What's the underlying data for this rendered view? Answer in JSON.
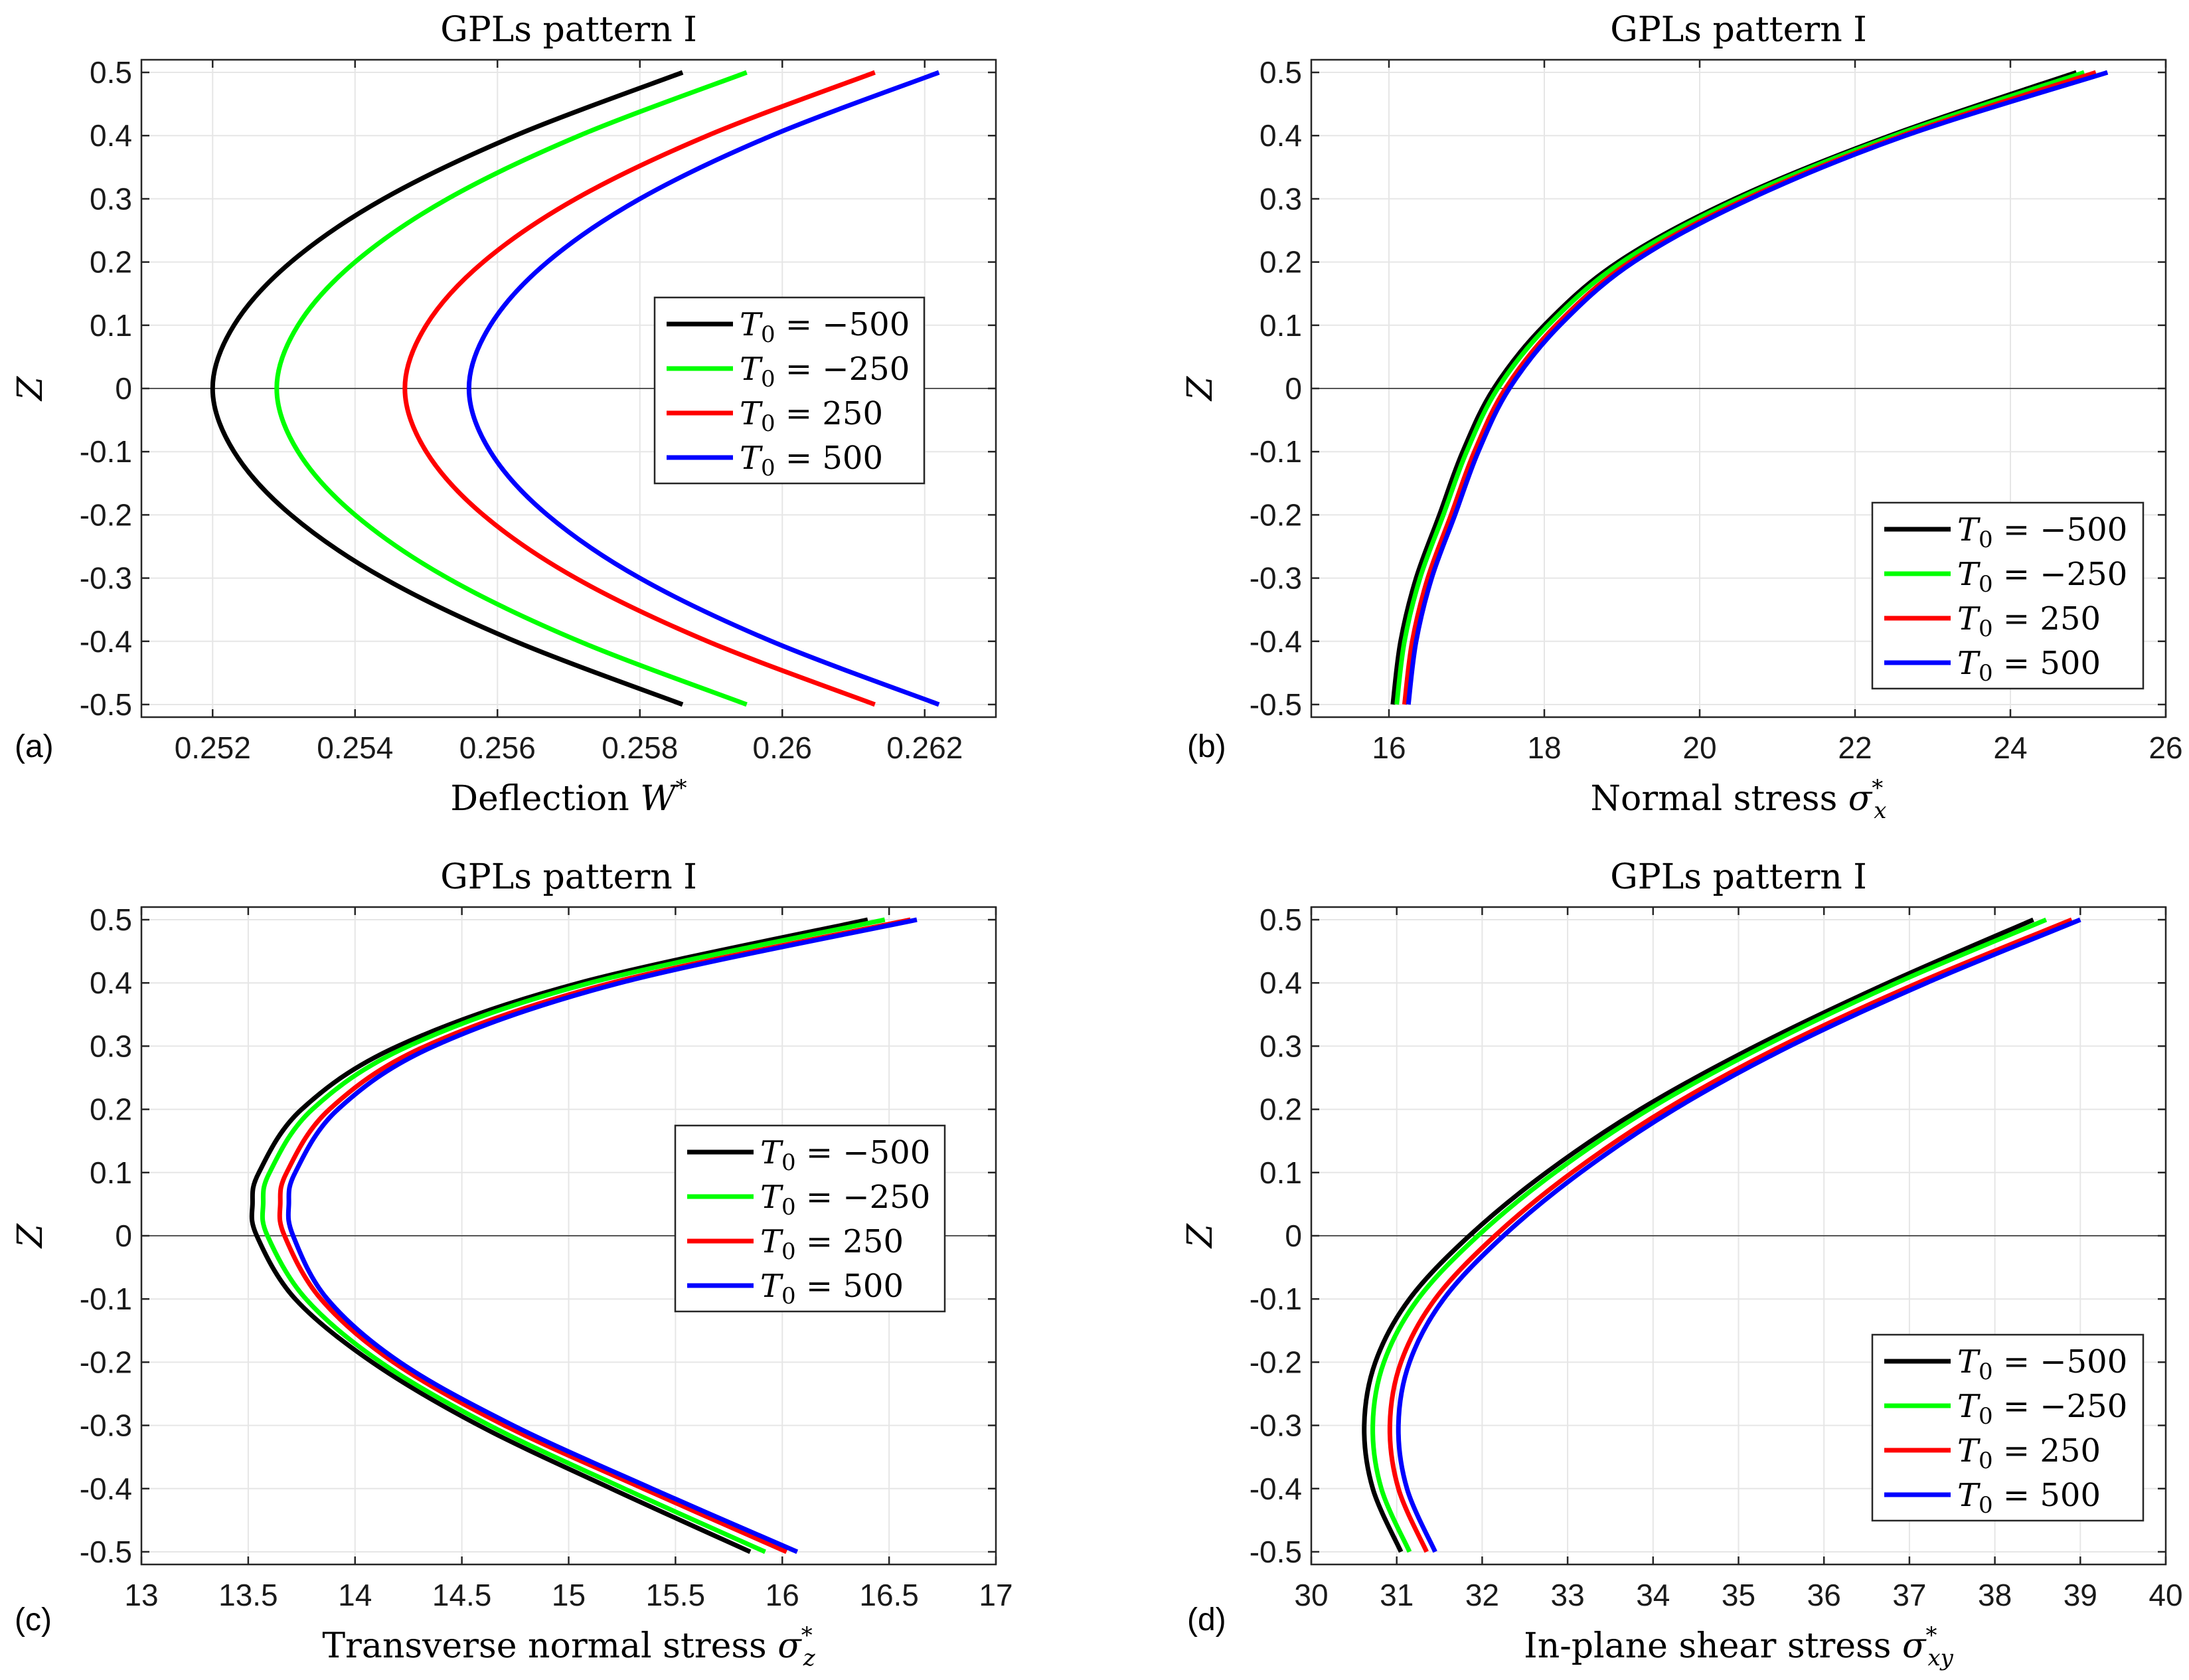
{
  "chart_data": [
    {
      "type": "line",
      "panel": "(a)",
      "title": "GPLs pattern I",
      "xlabel": "Deflection W*",
      "ylabel": "Z",
      "xlim": [
        0.251,
        0.263
      ],
      "ylim": [
        -0.52,
        0.52
      ],
      "xticks": [
        0.252,
        0.254,
        0.256,
        0.258,
        0.26,
        0.262
      ],
      "xtick_labels": [
        "0.252",
        "0.254",
        "0.256",
        "0.258",
        "0.26",
        "0.262"
      ],
      "yticks": [
        0.5,
        0.4,
        0.3,
        0.2,
        0.1,
        0,
        -0.1,
        -0.2,
        -0.3,
        -0.4,
        -0.5
      ],
      "ytick_labels": [
        "0.5",
        "0.4",
        "0.3",
        "0.2",
        "0.1",
        "0",
        "-0.1",
        "-0.2",
        "-0.3",
        "-0.4",
        "-0.5"
      ],
      "grid": true,
      "zero_line": true,
      "legend_position": "center-right",
      "z": [
        -0.5,
        -0.4,
        -0.3,
        -0.2,
        -0.1,
        0,
        0.1,
        0.2,
        0.3,
        0.4,
        0.5
      ],
      "series": [
        {
          "name": "T0 = -500",
          "color": "#000000",
          "values": [
            0.2586,
            0.25625,
            0.2544,
            0.2531,
            0.2523,
            0.252,
            0.2523,
            0.2531,
            0.2544,
            0.25625,
            0.2586
          ]
        },
        {
          "name": "T0 = -250",
          "color": "#00ff00",
          "values": [
            0.2595,
            0.25715,
            0.2553,
            0.254,
            0.2532,
            0.2529,
            0.2532,
            0.254,
            0.2553,
            0.25715,
            0.2595
          ]
        },
        {
          "name": "T0 = 250",
          "color": "#ff0000",
          "values": [
            0.2613,
            0.25895,
            0.2571,
            0.2558,
            0.255,
            0.2547,
            0.255,
            0.2558,
            0.2571,
            0.25895,
            0.2613
          ]
        },
        {
          "name": "T0 = 500",
          "color": "#0000ff",
          "values": [
            0.2622,
            0.25985,
            0.258,
            0.2567,
            0.2559,
            0.2556,
            0.2559,
            0.2567,
            0.258,
            0.25985,
            0.2622
          ]
        }
      ]
    },
    {
      "type": "line",
      "panel": "(b)",
      "title": "GPLs pattern I",
      "xlabel": "Normal stress σx*",
      "ylabel": "Z",
      "xlim": [
        15,
        26
      ],
      "ylim": [
        -0.52,
        0.52
      ],
      "xticks": [
        16,
        18,
        20,
        22,
        24,
        26
      ],
      "xtick_labels": [
        "16",
        "18",
        "20",
        "22",
        "24",
        "26"
      ],
      "yticks": [
        0.5,
        0.4,
        0.3,
        0.2,
        0.1,
        0,
        -0.1,
        -0.2,
        -0.3,
        -0.4,
        -0.5
      ],
      "ytick_labels": [
        "0.5",
        "0.4",
        "0.3",
        "0.2",
        "0.1",
        "0",
        "-0.1",
        "-0.2",
        "-0.3",
        "-0.4",
        "-0.5"
      ],
      "grid": true,
      "zero_line": true,
      "legend_position": "bottom-right",
      "z": [
        -0.5,
        -0.4,
        -0.3,
        -0.2,
        -0.1,
        0,
        0.1,
        0.2,
        0.3,
        0.4,
        0.5
      ],
      "series": [
        {
          "name": "T0 = -500",
          "color": "#000000",
          "values": [
            16.05,
            16.15,
            16.35,
            16.65,
            16.95,
            17.35,
            18.0,
            18.95,
            20.45,
            22.45,
            24.85
          ]
        },
        {
          "name": "T0 = -250",
          "color": "#00ff00",
          "values": [
            16.1,
            16.2,
            16.4,
            16.7,
            17.0,
            17.4,
            18.05,
            19.0,
            20.5,
            22.5,
            24.95
          ]
        },
        {
          "name": "T0 = 250",
          "color": "#ff0000",
          "values": [
            16.2,
            16.3,
            16.5,
            16.8,
            17.1,
            17.5,
            18.15,
            19.1,
            20.6,
            22.6,
            25.1
          ]
        },
        {
          "name": "T0 = 500",
          "color": "#0000ff",
          "values": [
            16.25,
            16.35,
            16.55,
            16.85,
            17.15,
            17.55,
            18.2,
            19.15,
            20.65,
            22.65,
            25.25
          ]
        }
      ]
    },
    {
      "type": "line",
      "panel": "(c)",
      "title": "GPLs pattern I",
      "xlabel": "Transverse normal stress σz*",
      "ylabel": "Z",
      "xlim": [
        13,
        17
      ],
      "ylim": [
        -0.52,
        0.52
      ],
      "xticks": [
        13,
        13.5,
        14,
        14.5,
        15,
        15.5,
        16,
        16.5,
        17
      ],
      "xtick_labels": [
        "13",
        "13.5",
        "14",
        "14.5",
        "15",
        "15.5",
        "16",
        "16.5",
        "17"
      ],
      "yticks": [
        0.5,
        0.4,
        0.3,
        0.2,
        0.1,
        0,
        -0.1,
        -0.2,
        -0.3,
        -0.4,
        -0.5
      ],
      "ytick_labels": [
        "0.5",
        "0.4",
        "0.3",
        "0.2",
        "0.1",
        "0",
        "-0.1",
        "-0.2",
        "-0.3",
        "-0.4",
        "-0.5"
      ],
      "grid": true,
      "zero_line": true,
      "legend_position": "center-right",
      "z": [
        -0.5,
        -0.4,
        -0.3,
        -0.2,
        -0.1,
        0,
        0.05,
        0.1,
        0.2,
        0.3,
        0.4,
        0.5
      ],
      "series": [
        {
          "name": "T0 = -500",
          "color": "#000000",
          "values": [
            15.85,
            15.2,
            14.58,
            14.08,
            13.72,
            13.54,
            13.52,
            13.55,
            13.75,
            14.2,
            15.05,
            16.4
          ]
        },
        {
          "name": "T0 = -250",
          "color": "#00ff00",
          "values": [
            15.92,
            15.26,
            14.63,
            14.12,
            13.77,
            13.59,
            13.57,
            13.6,
            13.8,
            14.25,
            15.1,
            16.48
          ]
        },
        {
          "name": "T0 = 250",
          "color": "#ff0000",
          "values": [
            16.02,
            15.35,
            14.7,
            14.18,
            13.84,
            13.67,
            13.65,
            13.68,
            13.88,
            14.33,
            15.2,
            16.6
          ]
        },
        {
          "name": "T0 = 500",
          "color": "#0000ff",
          "values": [
            16.07,
            15.39,
            14.74,
            14.21,
            13.87,
            13.71,
            13.69,
            13.72,
            13.92,
            14.37,
            15.24,
            16.63
          ]
        }
      ]
    },
    {
      "type": "line",
      "panel": "(d)",
      "title": "GPLs pattern I",
      "xlabel": "In-plane shear stress σxy*",
      "ylabel": "Z",
      "xlim": [
        30,
        40
      ],
      "ylim": [
        -0.52,
        0.52
      ],
      "xticks": [
        30,
        31,
        32,
        33,
        34,
        35,
        36,
        37,
        38,
        39,
        40
      ],
      "xtick_labels": [
        "30",
        "31",
        "32",
        "33",
        "34",
        "35",
        "36",
        "37",
        "38",
        "39",
        "40"
      ],
      "yticks": [
        0.5,
        0.4,
        0.3,
        0.2,
        0.1,
        0,
        -0.1,
        -0.2,
        -0.3,
        -0.4,
        -0.5
      ],
      "ytick_labels": [
        "0.5",
        "0.4",
        "0.3",
        "0.2",
        "0.1",
        "0",
        "-0.1",
        "-0.2",
        "-0.3",
        "-0.4",
        "-0.5"
      ],
      "grid": true,
      "zero_line": true,
      "legend_position": "bottom-right",
      "z": [
        -0.5,
        -0.4,
        -0.3,
        -0.2,
        -0.1,
        0,
        0.1,
        0.2,
        0.3,
        0.4,
        0.5
      ],
      "series": [
        {
          "name": "T0 = -500",
          "color": "#000000",
          "values": [
            31.05,
            30.72,
            30.62,
            30.75,
            31.15,
            31.85,
            32.75,
            33.85,
            35.2,
            36.75,
            38.45
          ]
        },
        {
          "name": "T0 = -250",
          "color": "#00ff00",
          "values": [
            31.15,
            30.82,
            30.72,
            30.85,
            31.25,
            31.95,
            32.85,
            33.95,
            35.3,
            36.85,
            38.6
          ]
        },
        {
          "name": "T0 = 250",
          "color": "#ff0000",
          "values": [
            31.35,
            31.02,
            30.92,
            31.05,
            31.45,
            32.15,
            33.05,
            34.15,
            35.5,
            37.1,
            38.9
          ]
        },
        {
          "name": "T0 = 500",
          "color": "#0000ff",
          "values": [
            31.45,
            31.12,
            31.02,
            31.15,
            31.55,
            32.25,
            33.15,
            34.25,
            35.6,
            37.2,
            39.0
          ]
        }
      ]
    }
  ]
}
